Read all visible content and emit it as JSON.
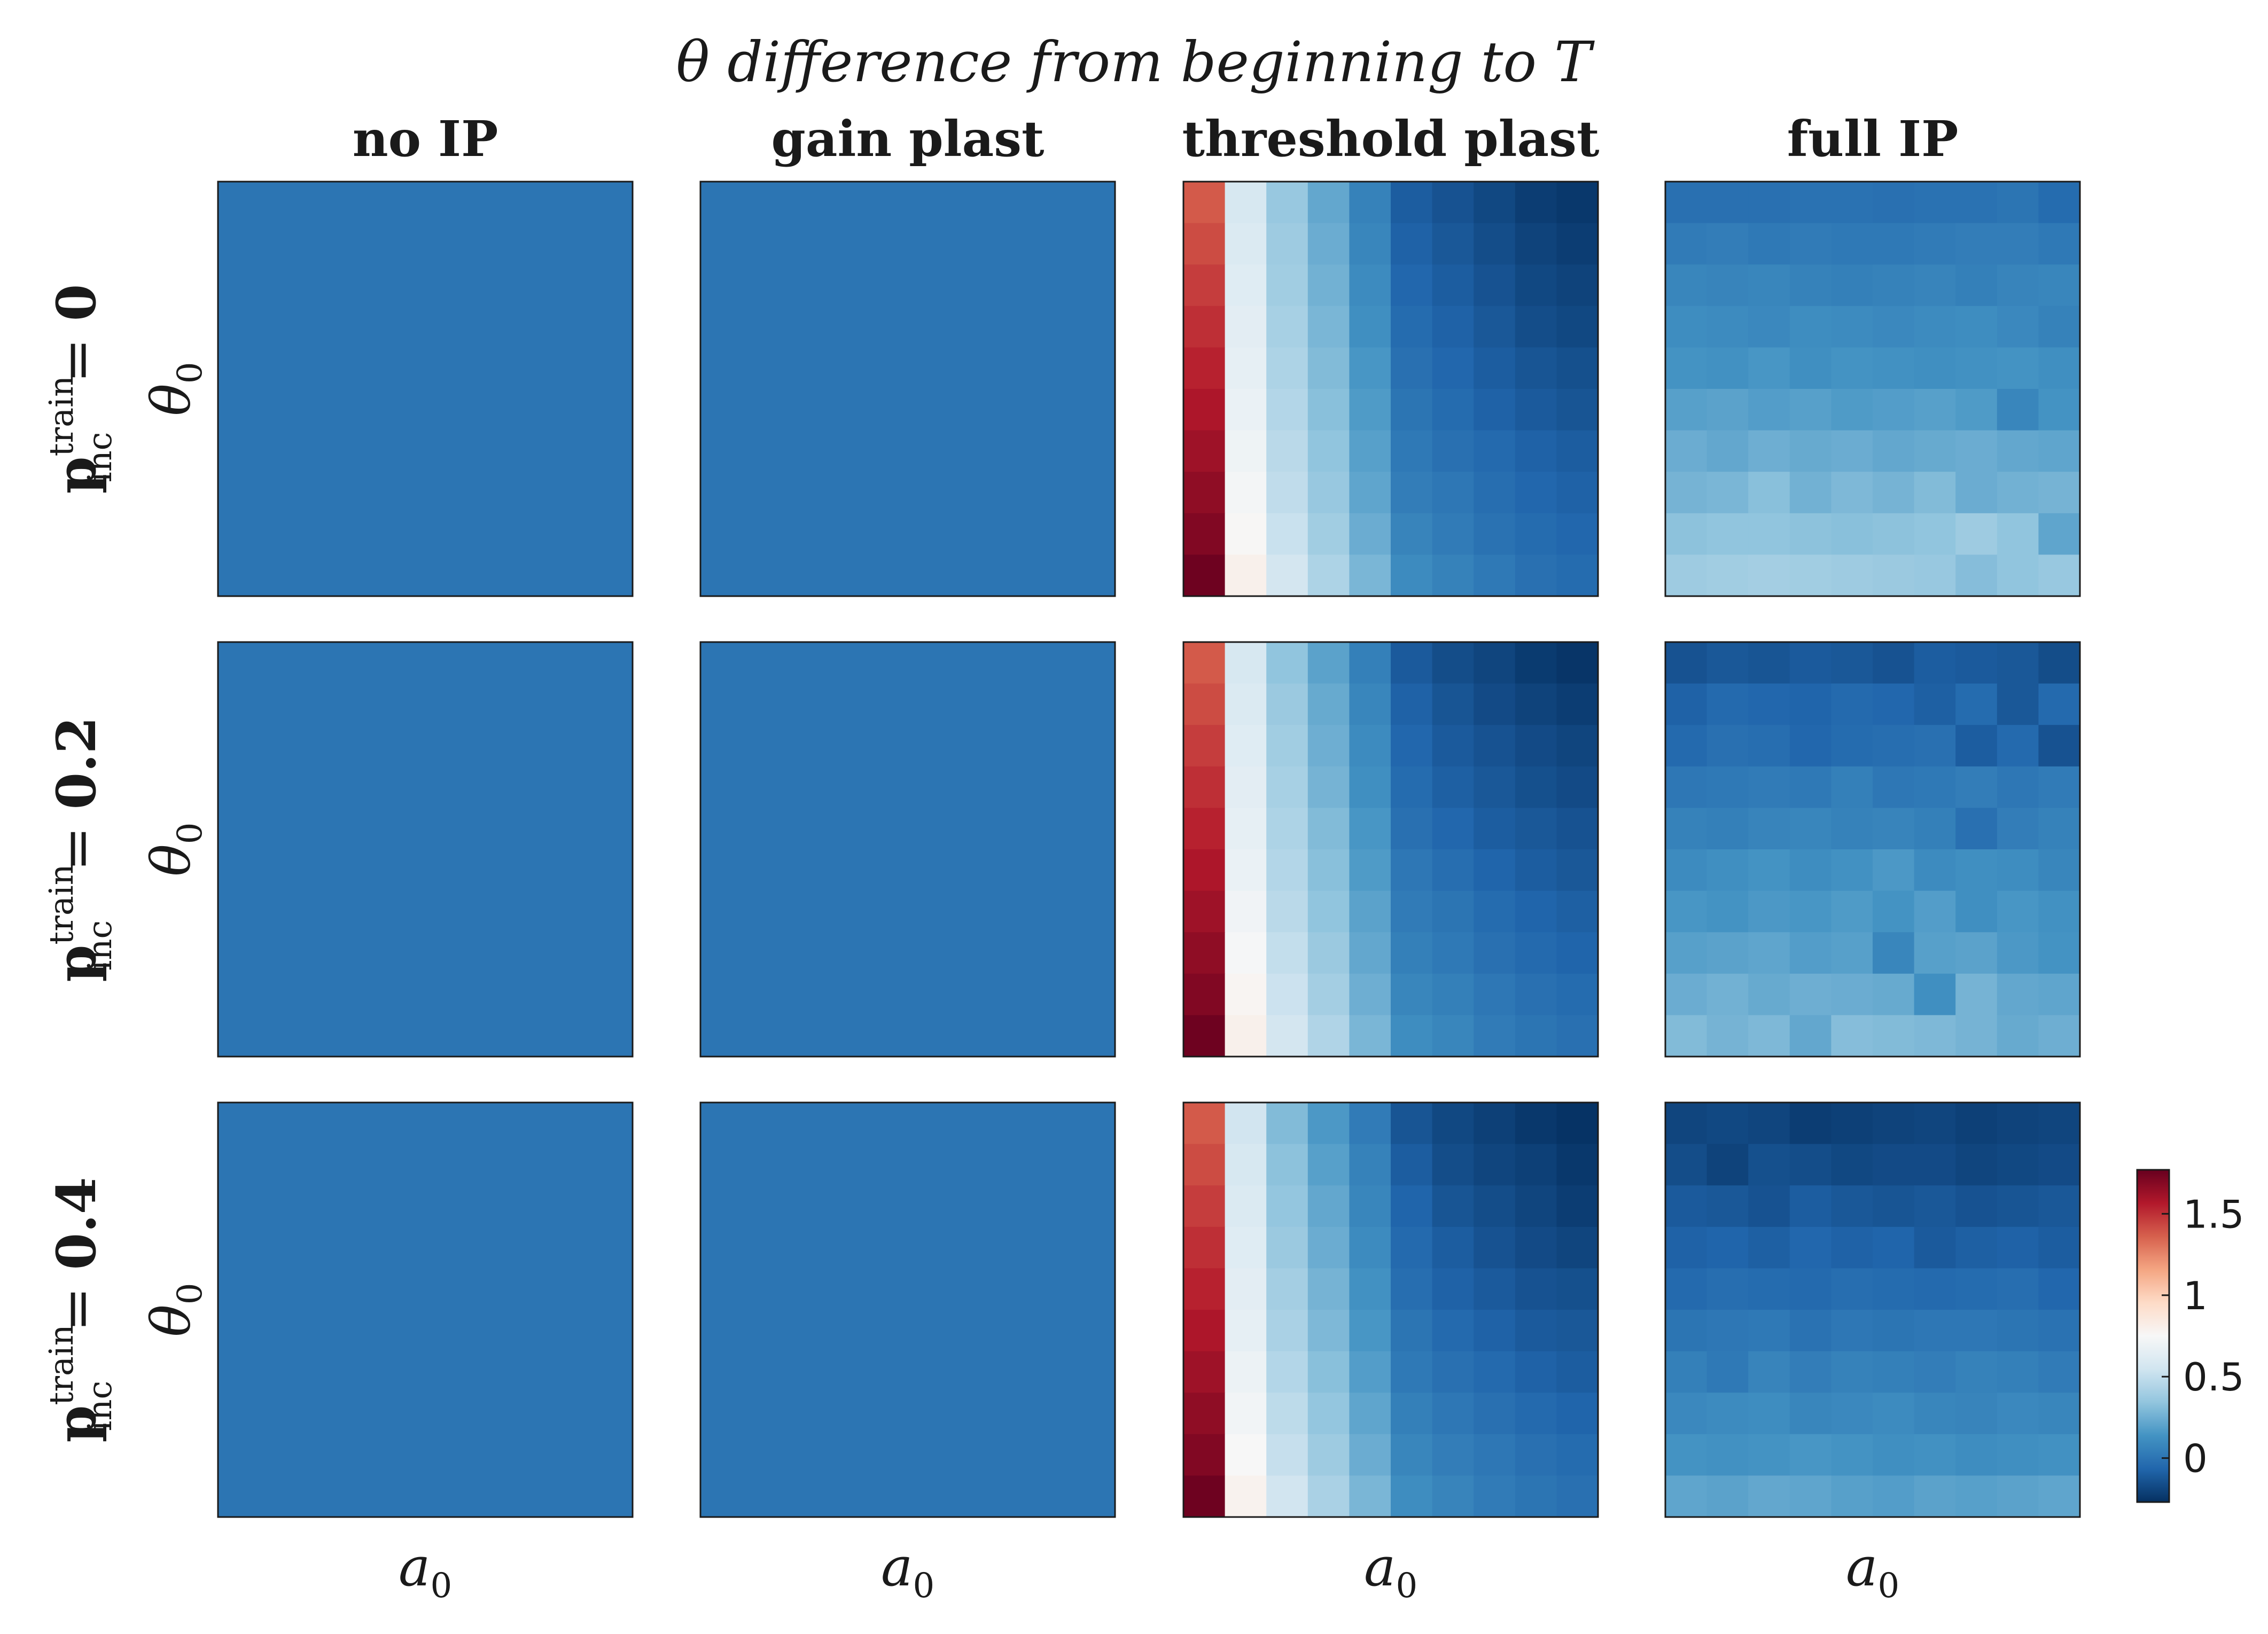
{
  "chart_data": {
    "type": "heatmap",
    "title": "θ difference from beginning to T",
    "columns": [
      "no IP",
      "gain plast",
      "threshold plast",
      "full IP"
    ],
    "row_params": [
      "0",
      "0.2",
      "0.4"
    ],
    "row_label_prefix": "p",
    "row_label_sup": "train",
    "row_label_sub": "inc",
    "row_label_eq": "=",
    "xlabel": "a",
    "xlabel_sub": "0",
    "ylabel": "θ",
    "ylabel_sub": "0",
    "grid_size": [
      10,
      10
    ],
    "colorbar": {
      "colormap": "RdBu_r",
      "range": [
        -0.27,
        1.77
      ],
      "ticks": [
        0,
        0.5,
        1,
        1.5
      ],
      "tick_labels": [
        "0",
        "0.5",
        "1",
        "1.5"
      ]
    },
    "panels": [
      {
        "row": "0",
        "column": "no IP",
        "constant": 0.0
      },
      {
        "row": "0",
        "column": "gain plast",
        "constant": 0.0
      },
      {
        "row": "0",
        "column": "threshold plast",
        "values": [
          [
            1.38,
            0.58,
            0.36,
            0.22,
            0.06,
            -0.1,
            -0.14,
            -0.18,
            -0.22,
            -0.24
          ],
          [
            1.42,
            0.6,
            0.38,
            0.24,
            0.08,
            -0.08,
            -0.12,
            -0.16,
            -0.2,
            -0.22
          ],
          [
            1.46,
            0.62,
            0.39,
            0.26,
            0.1,
            -0.06,
            -0.1,
            -0.14,
            -0.18,
            -0.2
          ],
          [
            1.5,
            0.64,
            0.41,
            0.28,
            0.12,
            -0.04,
            -0.08,
            -0.12,
            -0.16,
            -0.18
          ],
          [
            1.54,
            0.66,
            0.43,
            0.3,
            0.15,
            -0.02,
            -0.06,
            -0.1,
            -0.13,
            -0.15
          ],
          [
            1.58,
            0.68,
            0.45,
            0.32,
            0.17,
            0.0,
            -0.04,
            -0.08,
            -0.11,
            -0.13
          ],
          [
            1.62,
            0.7,
            0.47,
            0.34,
            0.19,
            0.02,
            -0.02,
            -0.05,
            -0.08,
            -0.1
          ],
          [
            1.66,
            0.73,
            0.49,
            0.36,
            0.21,
            0.04,
            0.01,
            -0.03,
            -0.06,
            -0.08
          ],
          [
            1.7,
            0.76,
            0.52,
            0.39,
            0.24,
            0.07,
            0.03,
            -0.01,
            -0.04,
            -0.06
          ],
          [
            1.75,
            0.8,
            0.56,
            0.43,
            0.28,
            0.1,
            0.06,
            0.02,
            -0.02,
            -0.04
          ]
        ]
      },
      {
        "row": "0",
        "column": "full IP",
        "values": [
          [
            -0.02,
            -0.02,
            -0.02,
            -0.01,
            -0.01,
            -0.02,
            -0.01,
            -0.01,
            0.0,
            -0.04
          ],
          [
            0.03,
            0.04,
            0.02,
            0.03,
            0.02,
            0.02,
            0.03,
            0.04,
            0.04,
            0.02
          ],
          [
            0.08,
            0.07,
            0.08,
            0.06,
            0.05,
            0.06,
            0.07,
            0.05,
            0.07,
            0.08
          ],
          [
            0.11,
            0.1,
            0.09,
            0.11,
            0.1,
            0.09,
            0.1,
            0.11,
            0.09,
            0.06
          ],
          [
            0.14,
            0.13,
            0.15,
            0.12,
            0.14,
            0.13,
            0.12,
            0.13,
            0.14,
            0.12
          ],
          [
            0.19,
            0.2,
            0.18,
            0.19,
            0.17,
            0.18,
            0.19,
            0.17,
            0.08,
            0.14
          ],
          [
            0.24,
            0.22,
            0.25,
            0.23,
            0.24,
            0.22,
            0.23,
            0.24,
            0.22,
            0.21
          ],
          [
            0.27,
            0.28,
            0.32,
            0.26,
            0.29,
            0.27,
            0.3,
            0.24,
            0.26,
            0.27
          ],
          [
            0.33,
            0.34,
            0.34,
            0.33,
            0.32,
            0.33,
            0.34,
            0.38,
            0.34,
            0.21
          ],
          [
            0.38,
            0.39,
            0.4,
            0.39,
            0.38,
            0.37,
            0.36,
            0.31,
            0.34,
            0.36
          ]
        ]
      },
      {
        "row": "0.2",
        "column": "no IP",
        "constant": 0.0
      },
      {
        "row": "0.2",
        "column": "gain plast",
        "constant": 0.0
      },
      {
        "row": "0.2",
        "column": "threshold plast",
        "values": [
          [
            1.38,
            0.58,
            0.34,
            0.2,
            0.05,
            -0.11,
            -0.16,
            -0.19,
            -0.23,
            -0.25
          ],
          [
            1.42,
            0.6,
            0.37,
            0.23,
            0.08,
            -0.08,
            -0.13,
            -0.17,
            -0.2,
            -0.22
          ],
          [
            1.46,
            0.62,
            0.39,
            0.25,
            0.1,
            -0.06,
            -0.11,
            -0.14,
            -0.17,
            -0.19
          ],
          [
            1.5,
            0.64,
            0.41,
            0.27,
            0.12,
            -0.04,
            -0.09,
            -0.12,
            -0.15,
            -0.17
          ],
          [
            1.54,
            0.66,
            0.43,
            0.3,
            0.15,
            -0.02,
            -0.06,
            -0.1,
            -0.12,
            -0.14
          ],
          [
            1.58,
            0.68,
            0.45,
            0.32,
            0.17,
            0.01,
            -0.03,
            -0.07,
            -0.1,
            -0.12
          ],
          [
            1.62,
            0.71,
            0.47,
            0.34,
            0.2,
            0.03,
            0.0,
            -0.04,
            -0.07,
            -0.09
          ],
          [
            1.66,
            0.74,
            0.5,
            0.37,
            0.22,
            0.05,
            0.02,
            -0.02,
            -0.05,
            -0.07
          ],
          [
            1.7,
            0.77,
            0.53,
            0.4,
            0.25,
            0.08,
            0.05,
            0.01,
            -0.02,
            -0.04
          ],
          [
            1.75,
            0.8,
            0.56,
            0.44,
            0.28,
            0.11,
            0.08,
            0.03,
            0.0,
            -0.02
          ]
        ]
      },
      {
        "row": "0.2",
        "column": "full IP",
        "values": [
          [
            -0.14,
            -0.12,
            -0.13,
            -0.11,
            -0.12,
            -0.14,
            -0.1,
            -0.11,
            -0.12,
            -0.16
          ],
          [
            -0.08,
            -0.05,
            -0.06,
            -0.07,
            -0.05,
            -0.06,
            -0.09,
            -0.04,
            -0.12,
            -0.05
          ],
          [
            -0.05,
            -0.02,
            -0.03,
            -0.06,
            -0.04,
            -0.03,
            -0.02,
            -0.1,
            -0.05,
            -0.14
          ],
          [
            0.01,
            0.02,
            0.03,
            0.02,
            0.05,
            0.01,
            0.02,
            0.04,
            0.01,
            0.03
          ],
          [
            0.06,
            0.05,
            0.07,
            0.08,
            0.06,
            0.07,
            0.05,
            -0.02,
            0.04,
            0.06
          ],
          [
            0.1,
            0.12,
            0.14,
            0.11,
            0.13,
            0.16,
            0.1,
            0.12,
            0.11,
            0.08
          ],
          [
            0.15,
            0.14,
            0.16,
            0.15,
            0.17,
            0.14,
            0.18,
            0.12,
            0.15,
            0.13
          ],
          [
            0.19,
            0.2,
            0.21,
            0.18,
            0.19,
            0.08,
            0.19,
            0.2,
            0.16,
            0.14
          ],
          [
            0.24,
            0.26,
            0.23,
            0.25,
            0.24,
            0.23,
            0.12,
            0.27,
            0.22,
            0.21
          ],
          [
            0.3,
            0.27,
            0.29,
            0.22,
            0.31,
            0.3,
            0.29,
            0.27,
            0.23,
            0.25
          ]
        ]
      },
      {
        "row": "0.4",
        "column": "no IP",
        "constant": 0.0
      },
      {
        "row": "0.4",
        "column": "gain plast",
        "constant": 0.0
      },
      {
        "row": "0.4",
        "column": "threshold plast",
        "values": [
          [
            1.38,
            0.55,
            0.3,
            0.16,
            0.03,
            -0.13,
            -0.18,
            -0.21,
            -0.24,
            -0.26
          ],
          [
            1.42,
            0.58,
            0.33,
            0.19,
            0.06,
            -0.1,
            -0.16,
            -0.19,
            -0.21,
            -0.24
          ],
          [
            1.46,
            0.6,
            0.35,
            0.22,
            0.08,
            -0.07,
            -0.13,
            -0.16,
            -0.19,
            -0.22
          ],
          [
            1.5,
            0.62,
            0.37,
            0.24,
            0.1,
            -0.05,
            -0.1,
            -0.14,
            -0.17,
            -0.19
          ],
          [
            1.54,
            0.64,
            0.4,
            0.27,
            0.13,
            -0.03,
            -0.08,
            -0.11,
            -0.14,
            -0.15
          ],
          [
            1.58,
            0.66,
            0.42,
            0.29,
            0.15,
            0.0,
            -0.05,
            -0.08,
            -0.11,
            -0.12
          ],
          [
            1.62,
            0.69,
            0.45,
            0.32,
            0.18,
            0.02,
            -0.02,
            -0.05,
            -0.08,
            -0.1
          ],
          [
            1.66,
            0.72,
            0.48,
            0.35,
            0.21,
            0.05,
            0.01,
            -0.02,
            -0.05,
            -0.07
          ],
          [
            1.7,
            0.75,
            0.51,
            0.38,
            0.24,
            0.08,
            0.04,
            0.01,
            -0.02,
            -0.04
          ],
          [
            1.75,
            0.79,
            0.55,
            0.42,
            0.28,
            0.11,
            0.07,
            0.03,
            0.0,
            -0.02
          ]
        ]
      },
      {
        "row": "0.4",
        "column": "full IP",
        "values": [
          [
            -0.19,
            -0.18,
            -0.19,
            -0.22,
            -0.21,
            -0.2,
            -0.19,
            -0.21,
            -0.2,
            -0.19
          ],
          [
            -0.16,
            -0.2,
            -0.15,
            -0.16,
            -0.18,
            -0.17,
            -0.17,
            -0.19,
            -0.18,
            -0.17
          ],
          [
            -0.11,
            -0.12,
            -0.14,
            -0.1,
            -0.12,
            -0.13,
            -0.12,
            -0.14,
            -0.13,
            -0.12
          ],
          [
            -0.08,
            -0.07,
            -0.09,
            -0.06,
            -0.08,
            -0.07,
            -0.11,
            -0.09,
            -0.08,
            -0.1
          ],
          [
            -0.05,
            -0.03,
            -0.04,
            -0.05,
            -0.03,
            -0.04,
            -0.05,
            -0.04,
            -0.03,
            -0.06
          ],
          [
            0.0,
            0.01,
            0.02,
            -0.01,
            0.01,
            0.0,
            0.01,
            0.01,
            0.0,
            -0.01
          ],
          [
            0.05,
            0.02,
            0.07,
            0.04,
            0.06,
            0.05,
            0.04,
            0.06,
            0.05,
            0.03
          ],
          [
            0.09,
            0.1,
            0.11,
            0.08,
            0.09,
            0.1,
            0.08,
            0.07,
            0.09,
            0.08
          ],
          [
            0.14,
            0.13,
            0.14,
            0.15,
            0.14,
            0.12,
            0.13,
            0.11,
            0.12,
            0.13
          ],
          [
            0.21,
            0.2,
            0.22,
            0.21,
            0.19,
            0.18,
            0.2,
            0.19,
            0.2,
            0.21
          ]
        ]
      }
    ]
  }
}
